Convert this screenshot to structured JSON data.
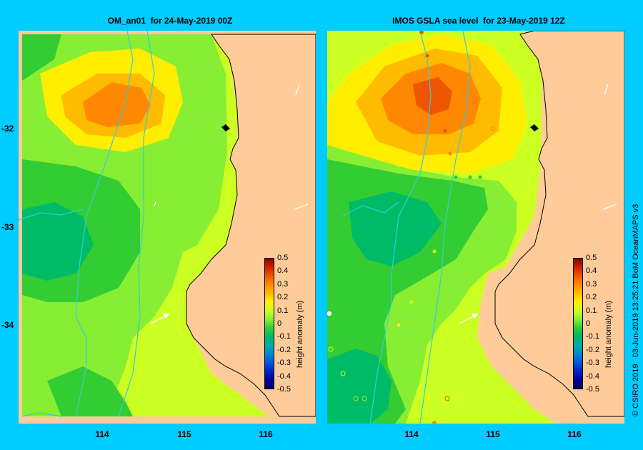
{
  "panels": [
    {
      "title": "OM_an01  for 24-May-2019 00Z",
      "colorbar_label": "height anomaly (m)"
    },
    {
      "title": "IMOS GSLA sea level  for 23-May-2019 12Z",
      "colorbar_label": "height anomaly (m)"
    }
  ],
  "axes": {
    "x_ticks": [
      "114",
      "115",
      "116"
    ],
    "y_ticks": [
      "-32",
      "-33",
      "-34"
    ]
  },
  "colorbar": {
    "ticks": [
      "0.5",
      "0.4",
      "0.3",
      "0.2",
      "0.1",
      "0",
      "-0.1",
      "-0.2",
      "-0.3",
      "-0.4",
      "-0.5"
    ],
    "colors": [
      "#880000",
      "#cc2200",
      "#ee5500",
      "#ff8800",
      "#ffbb00",
      "#ffee00",
      "#ccff22",
      "#88ee33",
      "#33cc33",
      "#00bb66",
      "#00aaaa",
      "#0088cc",
      "#0055dd",
      "#0022cc",
      "#000099",
      "#000066"
    ]
  },
  "credit": "© CSIRO 2019   03-Jun-2019 13:25:21 BoM OceanMAPS v3",
  "colors": {
    "background": "#00ccff",
    "land": "#ffcc99",
    "bathymetry_contour": "#33ccdd",
    "coast": "#000000",
    "fill_yellow_green": "#ccff22",
    "fill_green": "#88ee33",
    "fill_dark_green": "#33cc33",
    "fill_teal": "#00bb66",
    "fill_yellow": "#ffee00",
    "fill_orange_yellow": "#ffbb00",
    "fill_orange": "#ff8800",
    "fill_dark_orange": "#ee5500"
  }
}
